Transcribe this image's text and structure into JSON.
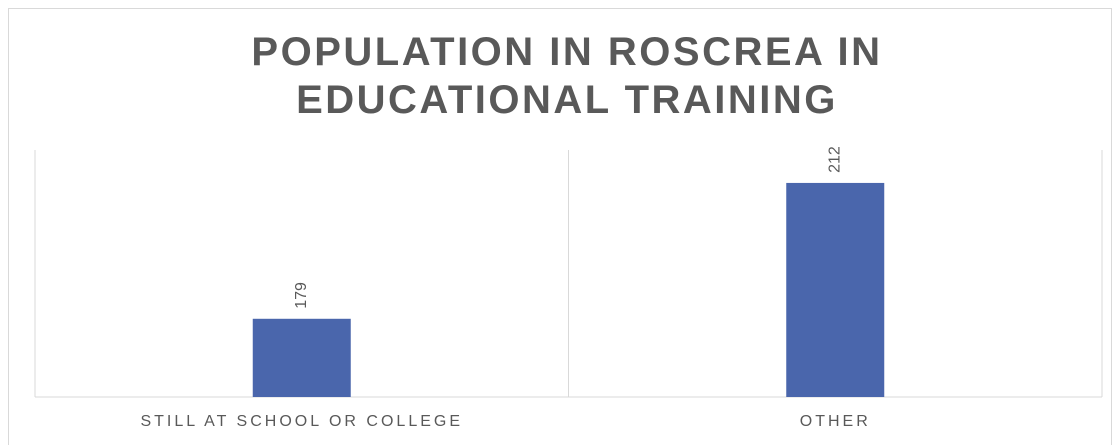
{
  "chart_data": {
    "type": "bar",
    "title": "POPULATION IN ROSCREA IN EDUCATIONAL TRAINING",
    "categories": [
      "STILL AT SCHOOL OR COLLEGE",
      "OTHER"
    ],
    "values": [
      179,
      212
    ],
    "color": "#4a66ac",
    "ylim": [
      160,
      220
    ]
  }
}
